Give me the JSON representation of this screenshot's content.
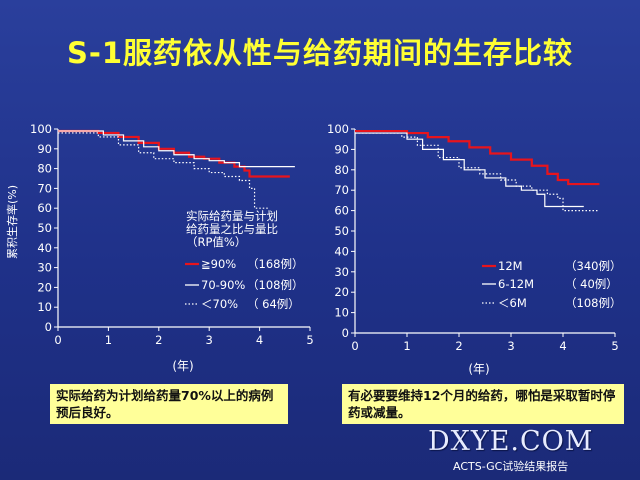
{
  "title": "S-1服药依从性与给药期间的生存比较",
  "notes": {
    "left": "实际给药为计划给药量70%以上的病例预后良好。",
    "right": "有必要要维持12个月的给药，哪怕是采取暂时停药或减量。"
  },
  "watermark": "DXYE.COM",
  "source": "ACTS-GC试验结果报告",
  "chart_data": [
    {
      "type": "line",
      "ylabel": "累积生存率(%)",
      "xlabel": "(年)",
      "xlim": [
        0,
        5
      ],
      "ylim": [
        0,
        100
      ],
      "xticks": [
        "0",
        "1",
        "2",
        "3",
        "4",
        "5"
      ],
      "yticks": [
        "0",
        "10",
        "20",
        "30",
        "40",
        "50",
        "60",
        "70",
        "80",
        "90",
        "100"
      ],
      "legend_title": [
        "实际给药量与计划",
        "给药量之比与量比",
        "（RP值%）"
      ],
      "series": [
        {
          "name": "≧90%",
          "count": "（168例）",
          "color": "#e8141c",
          "style": "solid",
          "x": [
            0,
            0.8,
            1.2,
            1.6,
            2.0,
            2.3,
            2.6,
            2.9,
            3.2,
            3.5,
            3.7,
            3.8,
            4.6
          ],
          "y": [
            99,
            98,
            96,
            93,
            90,
            88,
            86,
            85,
            83,
            81,
            79,
            76,
            76
          ]
        },
        {
          "name": "70-90%",
          "count": "（108例）",
          "color": "#ffffff",
          "style": "solid",
          "x": [
            0,
            0.9,
            1.3,
            1.7,
            2.0,
            2.3,
            2.7,
            3.0,
            3.3,
            3.6,
            4.7
          ],
          "y": [
            99,
            97,
            94,
            91,
            89,
            87,
            85,
            84,
            83,
            81,
            81
          ]
        },
        {
          "name": "＜70%",
          "count": "（ 64例）",
          "color": "#ffffff",
          "style": "dotted",
          "x": [
            0,
            0.8,
            1.2,
            1.6,
            1.9,
            2.3,
            2.7,
            3.0,
            3.3,
            3.6,
            3.8,
            3.9,
            4.2
          ],
          "y": [
            98,
            96,
            92,
            88,
            85,
            83,
            80,
            78,
            76,
            74,
            70,
            60,
            60
          ]
        }
      ]
    },
    {
      "type": "line",
      "xlabel": "(年)",
      "xlim": [
        0,
        5
      ],
      "ylim": [
        0,
        100
      ],
      "xticks": [
        "0",
        "1",
        "2",
        "3",
        "4",
        "5"
      ],
      "yticks": [
        "0",
        "10",
        "20",
        "30",
        "40",
        "50",
        "60",
        "70",
        "80",
        "90",
        "100"
      ],
      "series": [
        {
          "name": "12M",
          "count": "（340例）",
          "color": "#e8141c",
          "style": "solid",
          "x": [
            0,
            1.0,
            1.4,
            1.8,
            2.2,
            2.6,
            3.0,
            3.4,
            3.7,
            3.9,
            4.1,
            4.7
          ],
          "y": [
            99,
            98,
            96,
            94,
            91,
            88,
            85,
            82,
            78,
            75,
            73,
            73
          ]
        },
        {
          "name": "6-12M",
          "count": "（ 40例）",
          "color": "#ffffff",
          "style": "solid",
          "x": [
            0,
            1.0,
            1.3,
            1.7,
            2.1,
            2.5,
            2.9,
            3.2,
            3.5,
            3.65,
            4.4
          ],
          "y": [
            98,
            95,
            90,
            85,
            80,
            76,
            72,
            70,
            68,
            62,
            62
          ]
        },
        {
          "name": "＜6M",
          "count": "（108例）",
          "color": "#ffffff",
          "style": "dotted",
          "x": [
            0,
            0.9,
            1.2,
            1.6,
            2.0,
            2.4,
            2.8,
            3.1,
            3.4,
            3.7,
            3.9,
            4.0,
            4.7
          ],
          "y": [
            98,
            96,
            92,
            86,
            81,
            78,
            75,
            72,
            70,
            68,
            66,
            60,
            60
          ]
        }
      ]
    }
  ]
}
